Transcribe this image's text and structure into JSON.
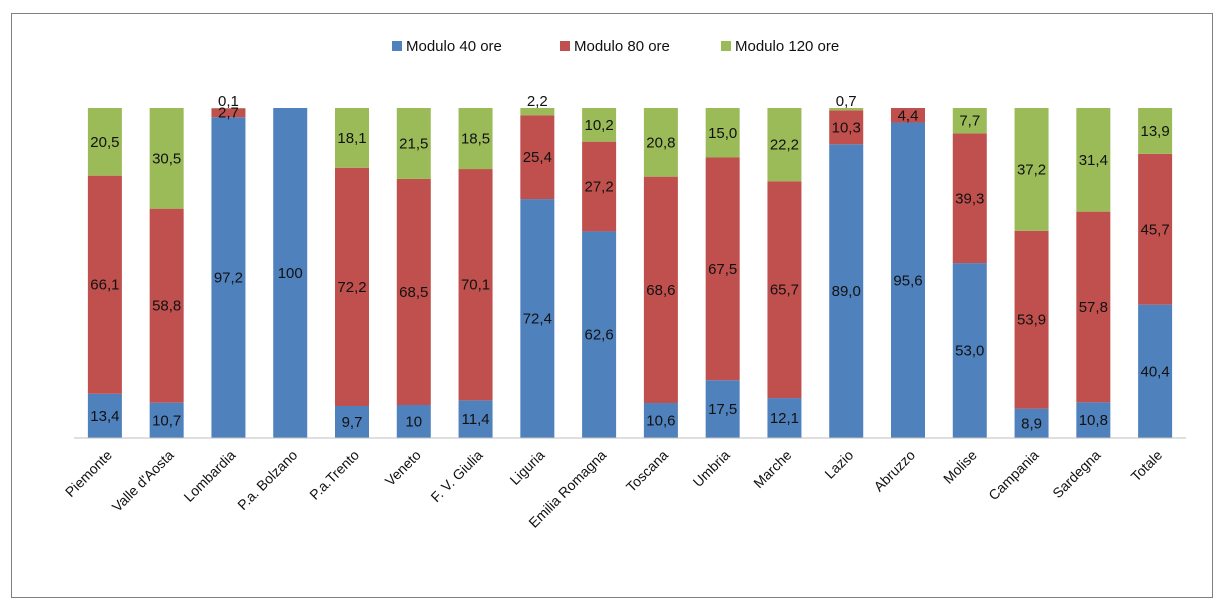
{
  "chart_data": {
    "type": "bar",
    "stacked": true,
    "percent_stacked": true,
    "categories": [
      "Piemonte",
      "Valle d'Aosta",
      "Lombardia",
      "P.a. Bolzano",
      "P.a.Trento",
      "Veneto",
      "F. V. Giulia",
      "Liguria",
      "Emilia Romagna",
      "Toscana",
      "Umbria",
      "Marche",
      "Lazio",
      "Abruzzo",
      "Molise",
      "Campania",
      "Sardegna",
      "Totale"
    ],
    "series": [
      {
        "name": "Modulo 40 ore",
        "color": "#4f81bd",
        "values": [
          13.4,
          10.7,
          97.2,
          100,
          9.7,
          10,
          11.4,
          72.4,
          62.6,
          10.6,
          17.5,
          12.1,
          89.0,
          95.6,
          53.0,
          8.9,
          10.8,
          40.4
        ],
        "labels": [
          "13,4",
          "10,7",
          "97,2",
          "100",
          "9,7",
          "10",
          "11,4",
          "72,4",
          "62,6",
          "10,6",
          "17,5",
          "12,1",
          "89,0",
          "95,6",
          "53,0",
          "8,9",
          "10,8",
          "40,4"
        ]
      },
      {
        "name": "Modulo 80 ore",
        "color": "#c0504d",
        "values": [
          66.1,
          58.8,
          2.7,
          0,
          72.2,
          68.5,
          70.1,
          25.4,
          27.2,
          68.6,
          67.5,
          65.7,
          10.3,
          4.4,
          39.3,
          53.9,
          57.8,
          45.7
        ],
        "labels": [
          "66,1",
          "58,8",
          "2,7",
          "",
          "72,2",
          "68,5",
          "70,1",
          "25,4",
          "27,2",
          "68,6",
          "67,5",
          "65,7",
          "10,3",
          "4,4",
          "39,3",
          "53,9",
          "57,8",
          "45,7"
        ]
      },
      {
        "name": "Modulo 120 ore",
        "color": "#9bbb59",
        "values": [
          20.5,
          30.5,
          0.1,
          0,
          18.1,
          21.5,
          18.5,
          2.2,
          10.2,
          20.8,
          15.0,
          22.2,
          0.7,
          0,
          7.7,
          37.2,
          31.4,
          13.9
        ],
        "labels": [
          "20,5",
          "30,5",
          "0,1",
          "",
          "18,1",
          "21,5",
          "18,5",
          "2,2",
          "10,2",
          "20,8",
          "15,0",
          "22,2",
          "0,7",
          "",
          "7,7",
          "37,2",
          "31,4",
          "13,9"
        ]
      }
    ],
    "ylim": [
      0,
      100
    ],
    "legend": "top-center",
    "grid": false,
    "xlabel": "",
    "ylabel": "",
    "title": ""
  }
}
